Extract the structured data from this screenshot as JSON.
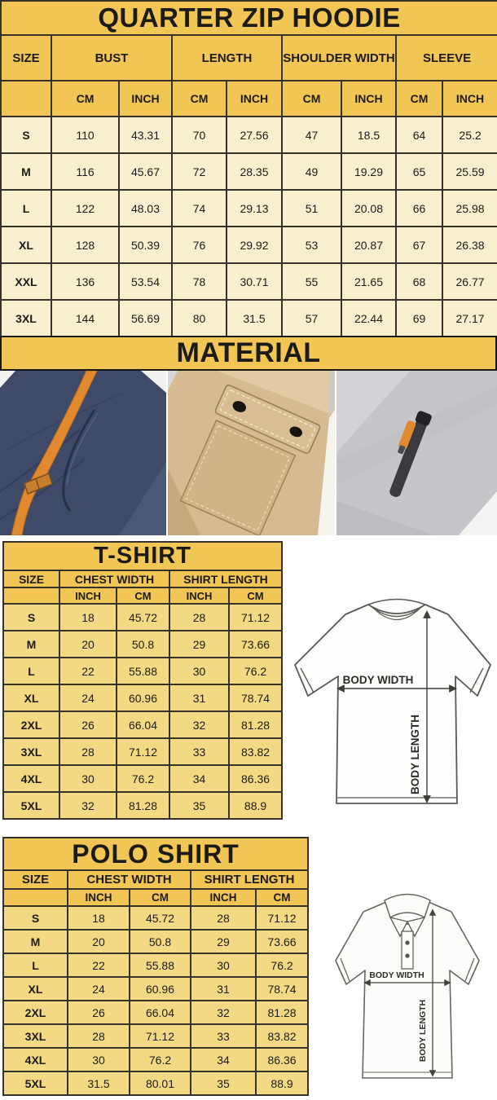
{
  "colors": {
    "header_yellow": "#f2c655",
    "hoodie_row": "#f8efce",
    "shirt_row": "#f3d983",
    "border_dark": "#35322a",
    "text_dark": "#1d1b17",
    "navy": "#3e4a68",
    "orange": "#e0892e",
    "khaki": "#d6ba92",
    "gray_fleece": "#c6c6ca"
  },
  "hoodie_table": {
    "title": "QUARTER ZIP HOODIE",
    "size_header": "SIZE",
    "groups": [
      "BUST",
      "LENGTH",
      "SHOULDER WIDTH",
      "SLEEVE"
    ],
    "unit_headers": [
      "CM",
      "INCH",
      "CM",
      "INCH",
      "CM",
      "INCH",
      "CM",
      "INCH"
    ],
    "rows": [
      {
        "size": "S",
        "values": [
          "110",
          "43.31",
          "70",
          "27.56",
          "47",
          "18.5",
          "64",
          "25.2"
        ]
      },
      {
        "size": "M",
        "values": [
          "116",
          "45.67",
          "72",
          "28.35",
          "49",
          "19.29",
          "65",
          "25.59"
        ]
      },
      {
        "size": "L",
        "values": [
          "122",
          "48.03",
          "74",
          "29.13",
          "51",
          "20.08",
          "66",
          "25.98"
        ]
      },
      {
        "size": "XL",
        "values": [
          "128",
          "50.39",
          "76",
          "29.92",
          "53",
          "20.87",
          "67",
          "26.38"
        ]
      },
      {
        "size": "XXL",
        "values": [
          "136",
          "53.54",
          "78",
          "30.71",
          "55",
          "21.65",
          "68",
          "26.77"
        ]
      },
      {
        "size": "3XL",
        "values": [
          "144",
          "56.69",
          "80",
          "31.5",
          "57",
          "22.44",
          "69",
          "27.17"
        ]
      }
    ]
  },
  "material": {
    "title": "MATERIAL",
    "photos": [
      {
        "name": "navy-hoodie-orange-drawstring"
      },
      {
        "name": "khaki-jacket-snap-flap-pocket"
      },
      {
        "name": "gray-fleece-zip-pocket-orange-pull"
      }
    ]
  },
  "tshirt_table": {
    "title": "T-SHIRT",
    "size_header": "SIZE",
    "groups": [
      "CHEST WIDTH",
      "SHIRT LENGTH"
    ],
    "unit_headers": [
      "INCH",
      "CM",
      "INCH",
      "CM"
    ],
    "rows": [
      {
        "size": "S",
        "values": [
          "18",
          "45.72",
          "28",
          "71.12"
        ]
      },
      {
        "size": "M",
        "values": [
          "20",
          "50.8",
          "29",
          "73.66"
        ]
      },
      {
        "size": "L",
        "values": [
          "22",
          "55.88",
          "30",
          "76.2"
        ]
      },
      {
        "size": "XL",
        "values": [
          "24",
          "60.96",
          "31",
          "78.74"
        ]
      },
      {
        "size": "2XL",
        "values": [
          "26",
          "66.04",
          "32",
          "81.28"
        ]
      },
      {
        "size": "3XL",
        "values": [
          "28",
          "71.12",
          "33",
          "83.82"
        ]
      },
      {
        "size": "4XL",
        "values": [
          "30",
          "76.2",
          "34",
          "86.36"
        ]
      },
      {
        "size": "5XL",
        "values": [
          "32",
          "81.28",
          "35",
          "88.9"
        ]
      }
    ]
  },
  "polo_table": {
    "title": "POLO SHIRT",
    "size_header": "SIZE",
    "groups": [
      "CHEST WIDTH",
      "SHIRT LENGTH"
    ],
    "unit_headers": [
      "INCH",
      "CM",
      "INCH",
      "CM"
    ],
    "rows": [
      {
        "size": "S",
        "values": [
          "18",
          "45.72",
          "28",
          "71.12"
        ]
      },
      {
        "size": "M",
        "values": [
          "20",
          "50.8",
          "29",
          "73.66"
        ]
      },
      {
        "size": "L",
        "values": [
          "22",
          "55.88",
          "30",
          "76.2"
        ]
      },
      {
        "size": "XL",
        "values": [
          "24",
          "60.96",
          "31",
          "78.74"
        ]
      },
      {
        "size": "2XL",
        "values": [
          "26",
          "66.04",
          "32",
          "81.28"
        ]
      },
      {
        "size": "3XL",
        "values": [
          "28",
          "71.12",
          "33",
          "83.82"
        ]
      },
      {
        "size": "4XL",
        "values": [
          "30",
          "76.2",
          "34",
          "86.36"
        ]
      },
      {
        "size": "5XL",
        "values": [
          "31.5",
          "80.01",
          "35",
          "88.9"
        ]
      }
    ]
  },
  "diagrams": {
    "tshirt": {
      "width_label": "BODY WIDTH",
      "length_label": "BODY LENGTH"
    },
    "polo": {
      "width_label": "BODY WIDTH",
      "length_label": "BODY LENGTH"
    }
  }
}
